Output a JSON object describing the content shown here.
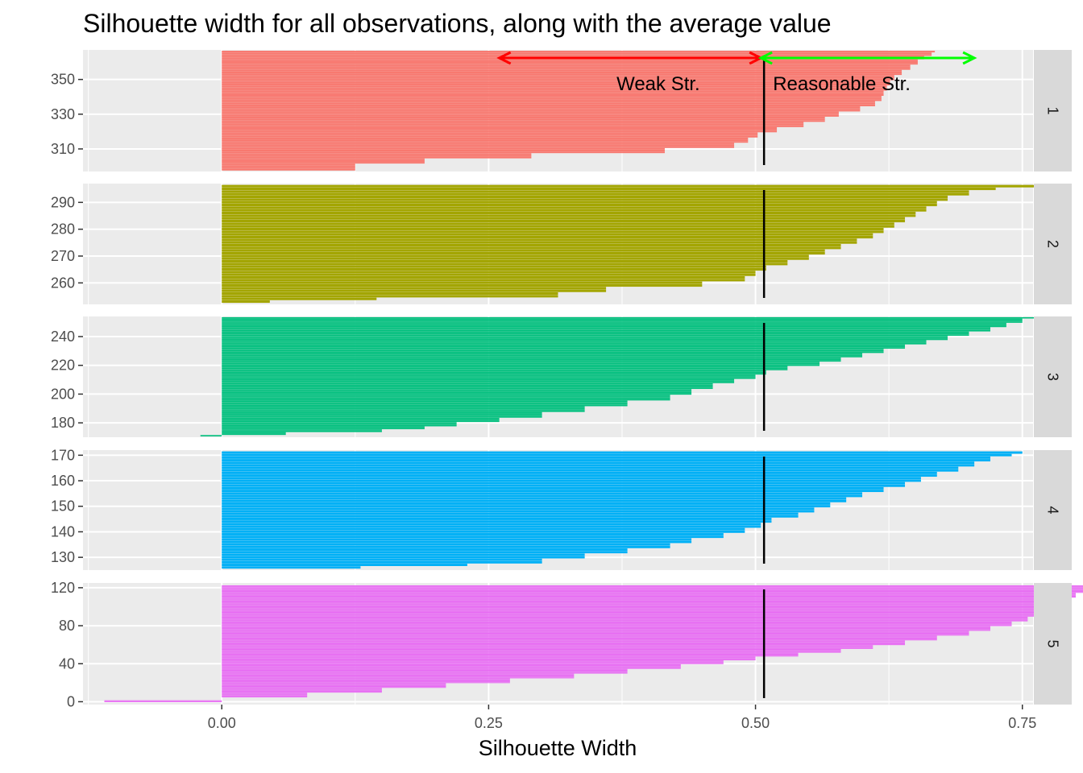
{
  "chart_data": {
    "type": "bar",
    "orientation": "horizontal",
    "title": "Silhouette width for all observations, along with the average value",
    "xlabel": "Silhouette Width",
    "ylabel": "",
    "xlim": [
      -0.13,
      0.76
    ],
    "x_ticks": [
      "0.00",
      "0.25",
      "0.50",
      "0.75"
    ],
    "x_tick_values": [
      0,
      0.25,
      0.5,
      0.75
    ],
    "average_silhouette": 0.508,
    "grid": true,
    "facets": [
      {
        "strip": "1",
        "color": "#F8766D",
        "ylim": [
          297,
          367
        ],
        "y_ticks": [
          310,
          330,
          350
        ],
        "ranges": [
          [
            298,
            0.125
          ],
          [
            302,
            0.19
          ],
          [
            305,
            0.29
          ],
          [
            308,
            0.415
          ],
          [
            311,
            0.48
          ],
          [
            314,
            0.493
          ],
          [
            317,
            0.502
          ],
          [
            320,
            0.52
          ],
          [
            323,
            0.545
          ],
          [
            326,
            0.565
          ],
          [
            329,
            0.578
          ],
          [
            332,
            0.598
          ],
          [
            335,
            0.612
          ],
          [
            338,
            0.618
          ],
          [
            341,
            0.62
          ],
          [
            344,
            0.623
          ],
          [
            347,
            0.626
          ],
          [
            350,
            0.63
          ],
          [
            353,
            0.637
          ],
          [
            356,
            0.645
          ],
          [
            359,
            0.652
          ],
          [
            362,
            0.658
          ],
          [
            364,
            0.665
          ],
          [
            366,
            0.668
          ]
        ]
      },
      {
        "strip": "2",
        "color": "#A3A500",
        "ylim": [
          252,
          297
        ],
        "y_ticks": [
          260,
          270,
          280,
          290
        ],
        "ranges": [
          [
            253,
            0.045
          ],
          [
            254,
            0.145
          ],
          [
            255,
            0.315
          ],
          [
            257,
            0.36
          ],
          [
            259,
            0.45
          ],
          [
            261,
            0.49
          ],
          [
            263,
            0.5
          ],
          [
            265,
            0.51
          ],
          [
            267,
            0.53
          ],
          [
            269,
            0.55
          ],
          [
            271,
            0.565
          ],
          [
            273,
            0.58
          ],
          [
            275,
            0.595
          ],
          [
            277,
            0.61
          ],
          [
            279,
            0.62
          ],
          [
            281,
            0.63
          ],
          [
            283,
            0.64
          ],
          [
            285,
            0.65
          ],
          [
            287,
            0.66
          ],
          [
            289,
            0.67
          ],
          [
            291,
            0.68
          ],
          [
            293,
            0.7
          ],
          [
            295,
            0.725
          ],
          [
            296,
            0.775
          ]
        ]
      },
      {
        "strip": "3",
        "color": "#00BF7D",
        "ylim": [
          170,
          254
        ],
        "y_ticks": [
          180,
          200,
          220,
          240
        ],
        "ranges": [
          [
            171,
            -0.02
          ],
          [
            172,
            0.06
          ],
          [
            174,
            0.15
          ],
          [
            176,
            0.19
          ],
          [
            178,
            0.22
          ],
          [
            181,
            0.26
          ],
          [
            184,
            0.3
          ],
          [
            188,
            0.34
          ],
          [
            192,
            0.38
          ],
          [
            196,
            0.42
          ],
          [
            200,
            0.44
          ],
          [
            204,
            0.46
          ],
          [
            208,
            0.48
          ],
          [
            211,
            0.5
          ],
          [
            214,
            0.51
          ],
          [
            217,
            0.53
          ],
          [
            220,
            0.56
          ],
          [
            223,
            0.58
          ],
          [
            226,
            0.6
          ],
          [
            229,
            0.62
          ],
          [
            232,
            0.64
          ],
          [
            235,
            0.66
          ],
          [
            238,
            0.68
          ],
          [
            241,
            0.7
          ],
          [
            244,
            0.72
          ],
          [
            247,
            0.735
          ],
          [
            250,
            0.75
          ],
          [
            253,
            0.77
          ]
        ]
      },
      {
        "strip": "4",
        "color": "#00B0F6",
        "ylim": [
          125,
          172
        ],
        "y_ticks": [
          130,
          140,
          150,
          160,
          170
        ],
        "ranges": [
          [
            126,
            0.13
          ],
          [
            127,
            0.23
          ],
          [
            128,
            0.3
          ],
          [
            130,
            0.34
          ],
          [
            132,
            0.38
          ],
          [
            134,
            0.42
          ],
          [
            136,
            0.44
          ],
          [
            138,
            0.47
          ],
          [
            140,
            0.49
          ],
          [
            142,
            0.505
          ],
          [
            144,
            0.515
          ],
          [
            146,
            0.54
          ],
          [
            148,
            0.555
          ],
          [
            150,
            0.57
          ],
          [
            152,
            0.585
          ],
          [
            154,
            0.6
          ],
          [
            156,
            0.62
          ],
          [
            158,
            0.64
          ],
          [
            160,
            0.655
          ],
          [
            162,
            0.67
          ],
          [
            164,
            0.69
          ],
          [
            166,
            0.705
          ],
          [
            168,
            0.72
          ],
          [
            170,
            0.74
          ],
          [
            171,
            0.75
          ]
        ]
      },
      {
        "strip": "5",
        "color": "#E76BF3",
        "ylim": [
          -3,
          125
        ],
        "y_ticks": [
          0,
          40,
          80,
          120
        ],
        "ranges": [
          [
            0,
            -0.11
          ],
          [
            2,
            0.0
          ],
          [
            5,
            0.08
          ],
          [
            10,
            0.15
          ],
          [
            15,
            0.21
          ],
          [
            20,
            0.27
          ],
          [
            25,
            0.33
          ],
          [
            30,
            0.38
          ],
          [
            35,
            0.43
          ],
          [
            40,
            0.47
          ],
          [
            44,
            0.5
          ],
          [
            48,
            0.54
          ],
          [
            52,
            0.58
          ],
          [
            56,
            0.61
          ],
          [
            60,
            0.64
          ],
          [
            65,
            0.67
          ],
          [
            70,
            0.7
          ],
          [
            75,
            0.72
          ],
          [
            80,
            0.74
          ],
          [
            85,
            0.755
          ],
          [
            90,
            0.765
          ],
          [
            95,
            0.775
          ],
          [
            100,
            0.78
          ],
          [
            105,
            0.79
          ],
          [
            110,
            0.8
          ],
          [
            115,
            0.81
          ],
          [
            120,
            0.82
          ],
          [
            122,
            0.825
          ]
        ]
      }
    ],
    "annotations": [
      {
        "label": "Weak Str.",
        "from": 0.26,
        "to": 0.505,
        "color": "#FF0000"
      },
      {
        "label": "Reasonable Str.",
        "from": 0.505,
        "to": 0.705,
        "color": "#00FF00"
      }
    ]
  }
}
